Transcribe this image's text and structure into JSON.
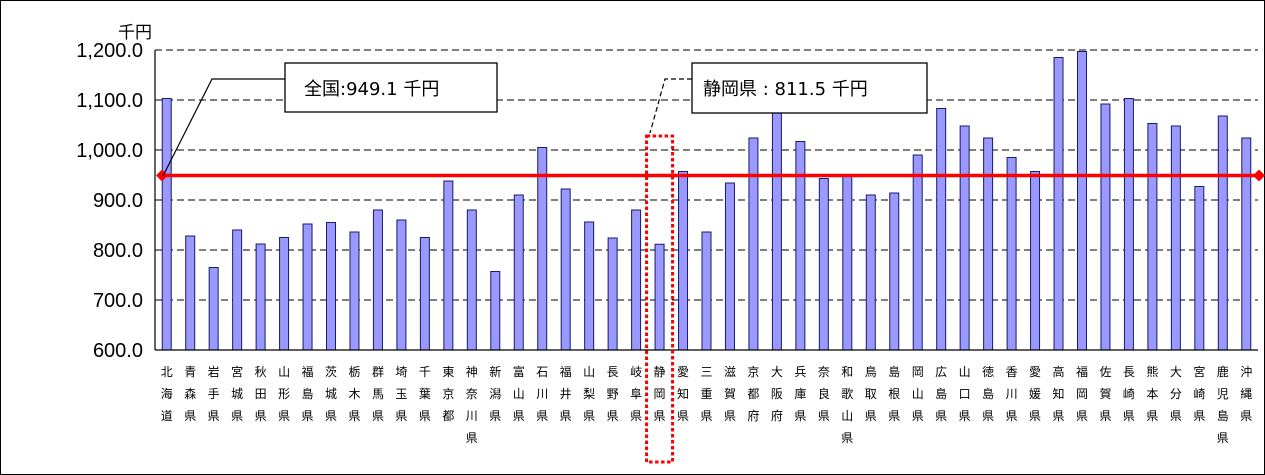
{
  "chart_data": {
    "type": "bar",
    "unit_label": "千円",
    "ylim": [
      600,
      1200
    ],
    "yticks": [
      "600.0",
      "700.0",
      "800.0",
      "900.0",
      "1,000.0",
      "1,100.0",
      "1,200.0"
    ],
    "grid": true,
    "legend": "none",
    "categories": [
      "北海道",
      "青森県",
      "岩手県",
      "宮城県",
      "秋田県",
      "山形県",
      "福島県",
      "茨城県",
      "栃木県",
      "群馬県",
      "埼玉県",
      "千葉県",
      "東京都",
      "神奈川県",
      "新潟県",
      "富山県",
      "石川県",
      "福井県",
      "山梨県",
      "長野県",
      "岐阜県",
      "静岡県",
      "愛知県",
      "三重県",
      "滋賀県",
      "京都府",
      "大阪府",
      "兵庫県",
      "奈良県",
      "和歌山県",
      "鳥取県",
      "島根県",
      "岡山県",
      "広島県",
      "山口県",
      "徳島県",
      "香川県",
      "愛媛県",
      "高知県",
      "福岡県",
      "佐賀県",
      "長崎県",
      "熊本県",
      "大分県",
      "宮崎県",
      "鹿児島県",
      "沖縄県"
    ],
    "values": [
      1103,
      828,
      765,
      840,
      812,
      825,
      852,
      855,
      836,
      880,
      860,
      825,
      938,
      880,
      757,
      910,
      1005,
      922,
      856,
      824,
      880,
      811.5,
      957,
      836,
      934,
      1024,
      1085,
      1017,
      943,
      950,
      910,
      914,
      990,
      1083,
      1048,
      1024,
      985,
      957,
      1185,
      1197,
      1092,
      1103,
      1053,
      1048,
      927,
      1068,
      1024
    ],
    "reference_line": {
      "value": 949.1,
      "color": "#ff0000"
    },
    "annotations": {
      "national": {
        "text": "全国:949.1 千円"
      },
      "shizuoka": {
        "text": "静岡県 : 811.5 千円",
        "category": "静岡県"
      }
    },
    "bar_color": "#9999ff"
  }
}
